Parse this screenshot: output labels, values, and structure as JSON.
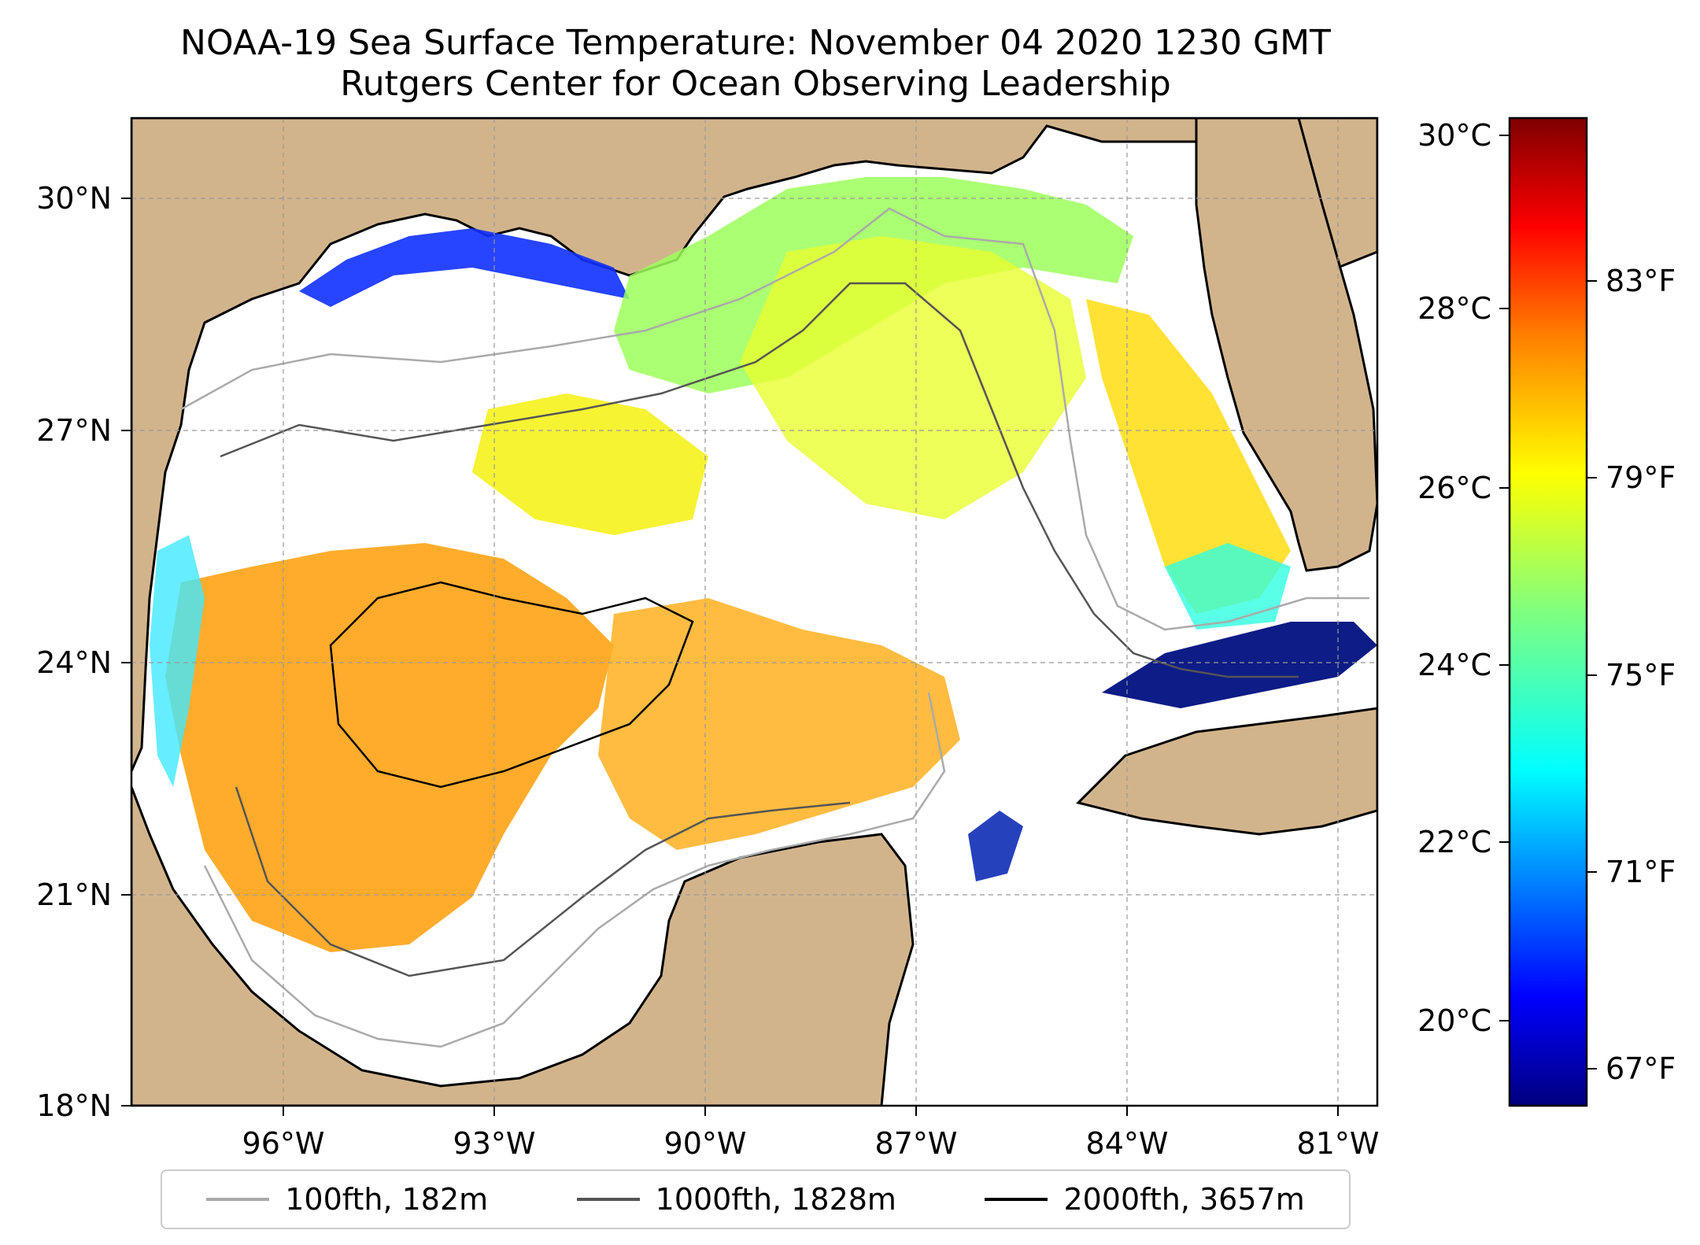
{
  "title": {
    "line1": "NOAA-19 Sea Surface Temperature: November 04 2020 1230 GMT",
    "line2": "Rutgers Center for Ocean Observing Leadership"
  },
  "map": {
    "region": "Gulf of Mexico",
    "lon_range": [
      -98,
      -80.5
    ],
    "lat_range": [
      18,
      31
    ],
    "grid": true,
    "land_color": "#d2b48c",
    "ocean_color": "#ffffff",
    "x_ticks": [
      "96°W",
      "93°W",
      "90°W",
      "87°W",
      "84°W",
      "81°W"
    ],
    "y_ticks": [
      "30°N",
      "27°N",
      "24°N",
      "21°N",
      "18°N"
    ]
  },
  "colorbar": {
    "colormap": "jet",
    "celsius_ticks": [
      "30°C",
      "28°C",
      "26°C",
      "24°C",
      "22°C",
      "20°C"
    ],
    "fahrenheit_ticks": [
      "83°F",
      "79°F",
      "75°F",
      "71°F",
      "67°F"
    ],
    "colors": [
      "#00007f",
      "#0000ff",
      "#007fff",
      "#00ffff",
      "#7fff7f",
      "#ffff00",
      "#ff7f00",
      "#ff0000",
      "#7f0000"
    ]
  },
  "legend": {
    "placement": "bottom",
    "items": [
      {
        "label": "100fth, 182m",
        "color": "#aaaaaa"
      },
      {
        "label": "1000fth, 1828m",
        "color": "#555555"
      },
      {
        "label": "2000fth, 3657m",
        "color": "#000000"
      }
    ]
  }
}
